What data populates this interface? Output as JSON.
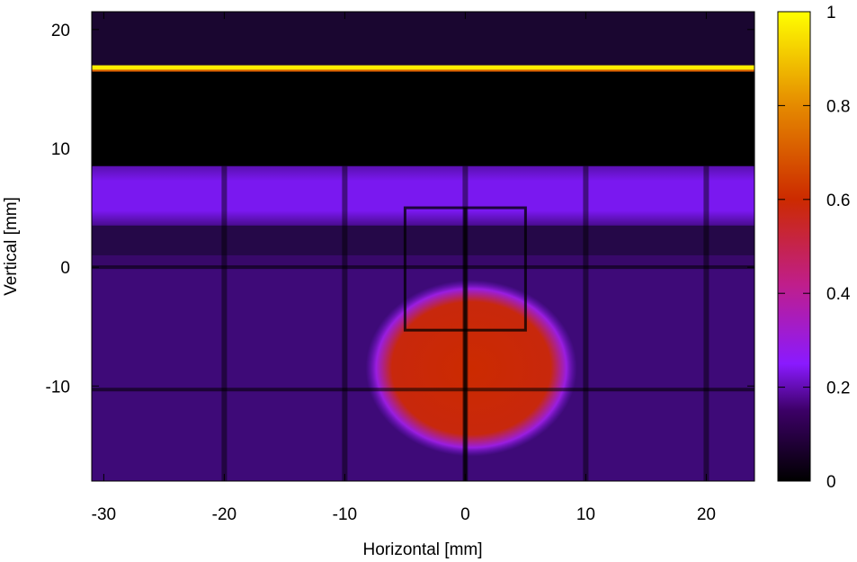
{
  "chart_data": {
    "type": "heatmap",
    "title": "",
    "xlabel": "Horizontal [mm]",
    "ylabel": "Vertical [mm]",
    "xlim": [
      -31,
      24
    ],
    "ylim": [
      -18,
      21.5
    ],
    "x_ticks": [
      -30,
      -20,
      -10,
      0,
      10,
      20
    ],
    "y_ticks": [
      -10,
      0,
      10,
      20
    ],
    "colorbar": {
      "range": [
        0,
        1
      ],
      "ticks": [
        0,
        0.2,
        0.4,
        0.6,
        0.8,
        1
      ],
      "tick_labels": [
        "0",
        "0.2",
        "0.4",
        "0.6",
        "0.8",
        "1"
      ],
      "colormap": [
        "#000000",
        "#3c0066",
        "#8a1aff",
        "#c01e8a",
        "#cc2a00",
        "#e58a00",
        "#ffff00"
      ]
    },
    "grid": false,
    "features": {
      "bright_line": {
        "y": 16.8,
        "value": 1.0,
        "x_range": [
          -31,
          24
        ]
      },
      "upper_band": {
        "y_range": [
          3.5,
          8.5
        ],
        "value": 0.22
      },
      "dark_region": {
        "y_range": [
          8.5,
          16.5
        ],
        "value": 0.0
      },
      "background_value": 0.12,
      "hot_spot": {
        "center": [
          0.5,
          -8.5
        ],
        "radius_x": 6.5,
        "radius_y": 5.5,
        "value": 0.52
      },
      "dark_box": {
        "x_range": [
          -5,
          5
        ],
        "y_range": [
          -5.3,
          5
        ]
      },
      "dark_vertical_lines_x": [
        -20,
        -10,
        0,
        10,
        20
      ],
      "dark_horizontal_lines_y": [
        0,
        -10.3
      ]
    }
  }
}
